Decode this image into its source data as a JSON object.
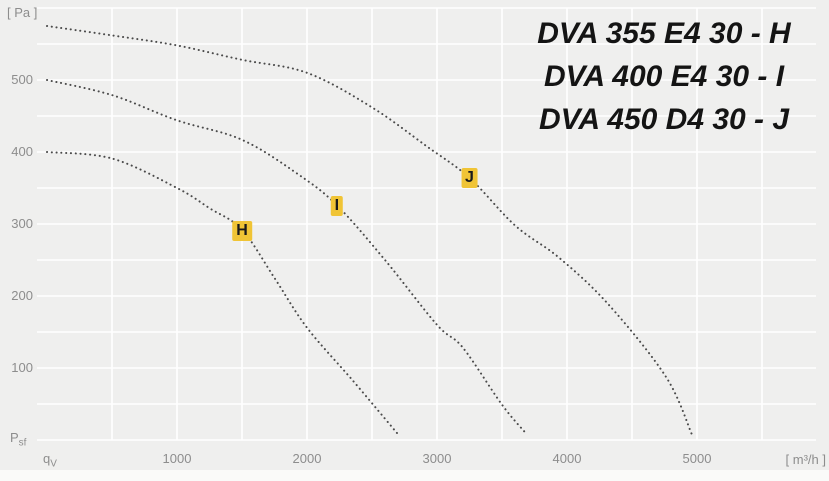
{
  "chart_data": {
    "type": "line",
    "title_lines": [
      "DVA 355 E4 30 - H",
      "DVA 400 E4 30 - I",
      "DVA 450 D4 30 - J"
    ],
    "y_axis": {
      "unit": "[ Pa ]",
      "quantity_base": "P",
      "quantity_sub": "sf",
      "ticks": [
        500,
        400,
        300,
        200,
        100
      ],
      "range": [
        0,
        600
      ],
      "grid_step": 50
    },
    "x_axis": {
      "unit": "[ m³/h ]",
      "quantity_base": "q",
      "quantity_sub": "V",
      "ticks": [
        1000,
        2000,
        3000,
        4000,
        5000
      ],
      "range": [
        0,
        6000
      ],
      "grid_step": 500
    },
    "grid": true,
    "legend_position": "top-right",
    "series": [
      {
        "name": "DVA 355 E4 30 - H",
        "marker": "H",
        "marker_point": {
          "flow": 1500,
          "pressure": 290
        },
        "points": [
          [
            0,
            400
          ],
          [
            500,
            391
          ],
          [
            1000,
            350
          ],
          [
            1250,
            322
          ],
          [
            1500,
            292
          ],
          [
            1750,
            225
          ],
          [
            2000,
            156
          ],
          [
            2350,
            83
          ],
          [
            2700,
            8
          ]
        ]
      },
      {
        "name": "DVA 400 E4 30 - I",
        "marker": "I",
        "marker_point": {
          "flow": 2230,
          "pressure": 325
        },
        "points": [
          [
            0,
            500
          ],
          [
            500,
            479
          ],
          [
            1000,
            444
          ],
          [
            1500,
            417
          ],
          [
            1940,
            368
          ],
          [
            2230,
            326
          ],
          [
            2600,
            250
          ],
          [
            3000,
            160
          ],
          [
            3200,
            128
          ],
          [
            3500,
            49
          ],
          [
            3690,
            8
          ]
        ]
      },
      {
        "name": "DVA 450 D4 30 - J",
        "marker": "J",
        "marker_point": {
          "flow": 3250,
          "pressure": 364
        },
        "points": [
          [
            0,
            575
          ],
          [
            500,
            562
          ],
          [
            1000,
            548
          ],
          [
            1500,
            528
          ],
          [
            2000,
            510
          ],
          [
            2500,
            462
          ],
          [
            2920,
            408
          ],
          [
            3250,
            364
          ],
          [
            3600,
            298
          ],
          [
            3940,
            253
          ],
          [
            4320,
            188
          ],
          [
            4760,
            88
          ],
          [
            4960,
            8
          ]
        ]
      }
    ]
  },
  "colors": {
    "page_bg": "#fafaf9",
    "plot_bg": "#efefee",
    "gridline": "#ffffff",
    "curve": "#4a4a4a",
    "tick_text": "#8d8d8d",
    "title_text": "#141414",
    "badge_bg": "#f0c435",
    "badge_text": "#1a1a1a"
  }
}
